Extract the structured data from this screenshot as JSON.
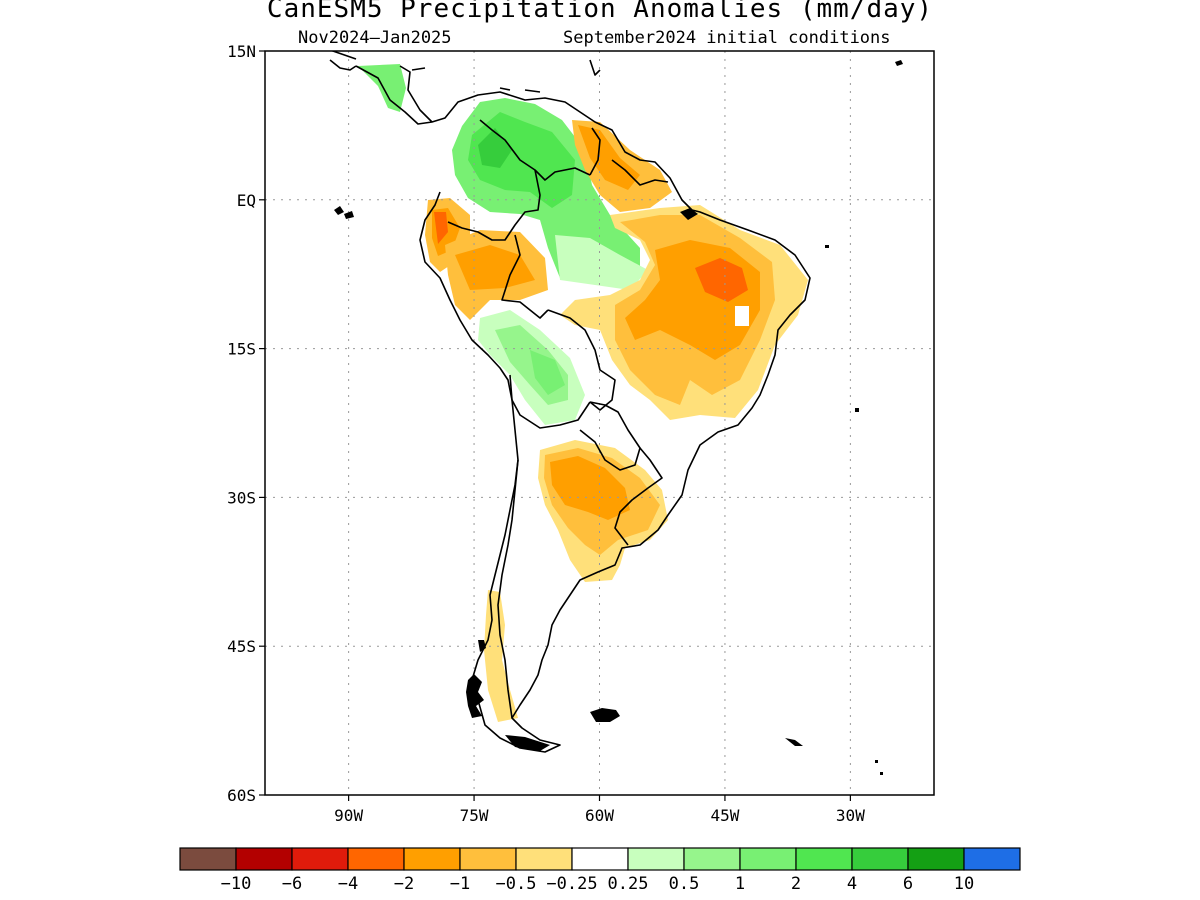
{
  "title": "CanESM5 Precipitation Anomalies (mm/day)",
  "subtitle_left": "Nov2024–Jan2025",
  "subtitle_right": "September2024 initial conditions",
  "map": {
    "lat_range": [
      -60,
      15
    ],
    "lon_range": [
      -100,
      -20
    ],
    "lat_labels": [
      {
        "lat": 15,
        "text": "15N"
      },
      {
        "lat": 0,
        "text": "EQ"
      },
      {
        "lat": -15,
        "text": "15S"
      },
      {
        "lat": -30,
        "text": "30S"
      },
      {
        "lat": -45,
        "text": "45S"
      },
      {
        "lat": -60,
        "text": "60S"
      }
    ],
    "lon_labels": [
      {
        "lon": -90,
        "text": "90W"
      },
      {
        "lon": -75,
        "text": "75W"
      },
      {
        "lon": -60,
        "text": "60W"
      },
      {
        "lon": -45,
        "text": "45W"
      },
      {
        "lon": -30,
        "text": "30W"
      }
    ],
    "grid": true
  },
  "colorbar": {
    "colors": [
      "#7b4b3e",
      "#b30000",
      "#e01b0b",
      "#ff6600",
      "#ff9f00",
      "#ffbf3c",
      "#ffe07a",
      "#ffffff",
      "#c8ffbe",
      "#96f58c",
      "#78f073",
      "#50e650",
      "#36cd3c",
      "#14a014",
      "#1e6ee6"
    ],
    "labels": [
      "−10",
      "−6",
      "−4",
      "−2",
      "−1",
      "−0.5",
      "−0.25",
      "0.25",
      "0.5",
      "1",
      "2",
      "4",
      "6",
      "10"
    ]
  },
  "legend_colors": {
    "dry_strong": "#ff6600",
    "dry": "#ff9f00",
    "dry_moderate": "#ffbf3c",
    "dry_weak": "#ffe07a",
    "wet_weak": "#c8ffbe",
    "wet": "#78f073",
    "wet_moderate": "#50e650",
    "wet_strong": "#36cd3c"
  }
}
